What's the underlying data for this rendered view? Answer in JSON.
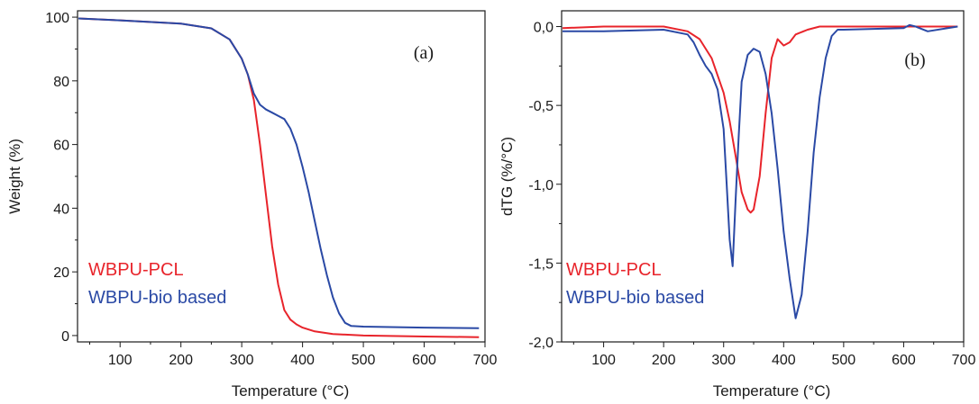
{
  "chart_data": [
    {
      "type": "line",
      "panel_label": "(a)",
      "xlabel": "Temperature (°C)",
      "ylabel": "Weight (%)",
      "xlim": [
        30,
        700
      ],
      "ylim": [
        -2,
        102
      ],
      "xticks": [
        100,
        200,
        300,
        400,
        500,
        600,
        700
      ],
      "xtick_labels": [
        "100",
        "200",
        "300",
        "400",
        "500",
        "600",
        "700"
      ],
      "yticks": [
        0,
        20,
        40,
        60,
        80,
        100
      ],
      "ytick_labels": [
        "0",
        "20",
        "40",
        "60",
        "80",
        "100"
      ],
      "grid": false,
      "legend_position": "bottom-left",
      "series": [
        {
          "name": "WBPU-PCL",
          "color": "#e8242b",
          "x": [
            30,
            100,
            200,
            250,
            280,
            300,
            310,
            320,
            330,
            340,
            350,
            360,
            370,
            380,
            390,
            400,
            420,
            450,
            500,
            600,
            690
          ],
          "y": [
            99.6,
            99,
            98,
            96.5,
            93,
            87,
            82,
            74,
            60,
            44,
            28,
            16,
            8,
            5,
            3.5,
            2.5,
            1.3,
            0.5,
            0,
            -0.3,
            -0.5
          ]
        },
        {
          "name": "WBPU-bio  based",
          "color": "#2a49a5",
          "x": [
            30,
            100,
            200,
            250,
            280,
            300,
            310,
            320,
            330,
            340,
            350,
            360,
            370,
            380,
            390,
            400,
            410,
            420,
            430,
            440,
            450,
            460,
            470,
            480,
            500,
            600,
            690
          ],
          "y": [
            99.6,
            99,
            98,
            96.5,
            93,
            87,
            82,
            76,
            72.5,
            71,
            70,
            69,
            68,
            65,
            60,
            53,
            45,
            36,
            27,
            19,
            12,
            7,
            4,
            3,
            2.8,
            2.5,
            2.3
          ]
        }
      ]
    },
    {
      "type": "line",
      "panel_label": "(b)",
      "xlabel": "Temperature (°C)",
      "ylabel": "dTG (%/°C)",
      "xlim": [
        30,
        700
      ],
      "ylim": [
        -2.0,
        0.1
      ],
      "xticks": [
        100,
        200,
        300,
        400,
        500,
        600,
        700
      ],
      "xtick_labels": [
        "100",
        "200",
        "300",
        "400",
        "500",
        "600",
        "700"
      ],
      "yticks": [
        0,
        -0.5,
        -1.0,
        -1.5,
        -2.0
      ],
      "ytick_labels": [
        "0,0",
        "-0,5",
        "-1,0",
        "-1,5",
        "-2,0"
      ],
      "grid": false,
      "legend_position": "bottom-left",
      "series": [
        {
          "name": "WBPU-PCL",
          "color": "#e8242b",
          "x": [
            30,
            100,
            200,
            240,
            260,
            280,
            300,
            310,
            320,
            330,
            340,
            345,
            350,
            360,
            370,
            380,
            390,
            400,
            410,
            420,
            440,
            460,
            500,
            600,
            690
          ],
          "y": [
            -0.01,
            0,
            0,
            -0.03,
            -0.08,
            -0.2,
            -0.42,
            -0.6,
            -0.82,
            -1.05,
            -1.16,
            -1.18,
            -1.16,
            -0.95,
            -0.55,
            -0.2,
            -0.08,
            -0.12,
            -0.1,
            -0.05,
            -0.02,
            0,
            0,
            0,
            0
          ]
        },
        {
          "name": "WBPU-bio  based",
          "color": "#2a49a5",
          "x": [
            30,
            100,
            200,
            240,
            250,
            260,
            270,
            280,
            290,
            300,
            305,
            310,
            315,
            320,
            325,
            330,
            340,
            350,
            360,
            370,
            380,
            390,
            400,
            410,
            420,
            430,
            440,
            450,
            460,
            470,
            480,
            490,
            500,
            600,
            610,
            620,
            640,
            690
          ],
          "y": [
            -0.03,
            -0.03,
            -0.02,
            -0.05,
            -0.1,
            -0.18,
            -0.25,
            -0.3,
            -0.4,
            -0.65,
            -1.0,
            -1.35,
            -1.52,
            -1.1,
            -0.7,
            -0.35,
            -0.18,
            -0.14,
            -0.16,
            -0.3,
            -0.55,
            -0.9,
            -1.3,
            -1.6,
            -1.85,
            -1.7,
            -1.3,
            -0.8,
            -0.45,
            -0.2,
            -0.06,
            -0.02,
            -0.02,
            -0.01,
            0.01,
            0,
            -0.03,
            0
          ]
        }
      ]
    }
  ]
}
